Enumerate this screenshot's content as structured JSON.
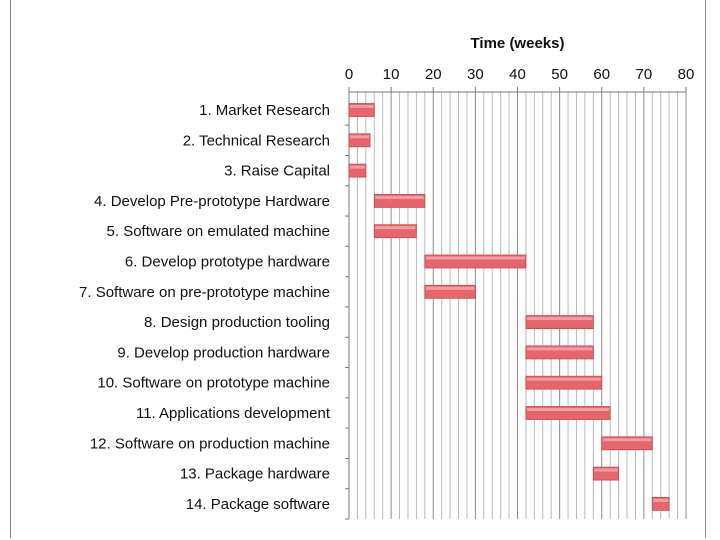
{
  "chart_data": {
    "type": "bar",
    "orientation": "horizontal-gantt",
    "title": "",
    "xlabel": "Time (weeks)",
    "ylabel": "",
    "xlim": [
      0,
      80
    ],
    "x_ticks": [
      0,
      10,
      20,
      30,
      40,
      50,
      60,
      70,
      80
    ],
    "x_axis_position": "top",
    "grid": true,
    "bar_color": "#e8666b",
    "tasks": [
      {
        "label": "1. Market Research",
        "start": 0,
        "end": 6
      },
      {
        "label": "2. Technical Research",
        "start": 0,
        "end": 5
      },
      {
        "label": "3. Raise Capital",
        "start": 0,
        "end": 4
      },
      {
        "label": "4. Develop Pre-prototype Hardware",
        "start": 6,
        "end": 18
      },
      {
        "label": "5. Software on emulated machine",
        "start": 6,
        "end": 16
      },
      {
        "label": "6. Develop prototype hardware",
        "start": 18,
        "end": 42
      },
      {
        "label": "7. Software on pre-prototype machine",
        "start": 18,
        "end": 30
      },
      {
        "label": "8. Design production tooling",
        "start": 42,
        "end": 58
      },
      {
        "label": "9. Develop production hardware",
        "start": 42,
        "end": 58
      },
      {
        "label": "10. Software on prototype machine",
        "start": 42,
        "end": 60
      },
      {
        "label": "11. Applications development",
        "start": 42,
        "end": 62
      },
      {
        "label": "12. Software on production machine",
        "start": 60,
        "end": 72
      },
      {
        "label": "13. Package hardware",
        "start": 58,
        "end": 64
      },
      {
        "label": "14. Package software",
        "start": 72,
        "end": 76
      }
    ]
  }
}
